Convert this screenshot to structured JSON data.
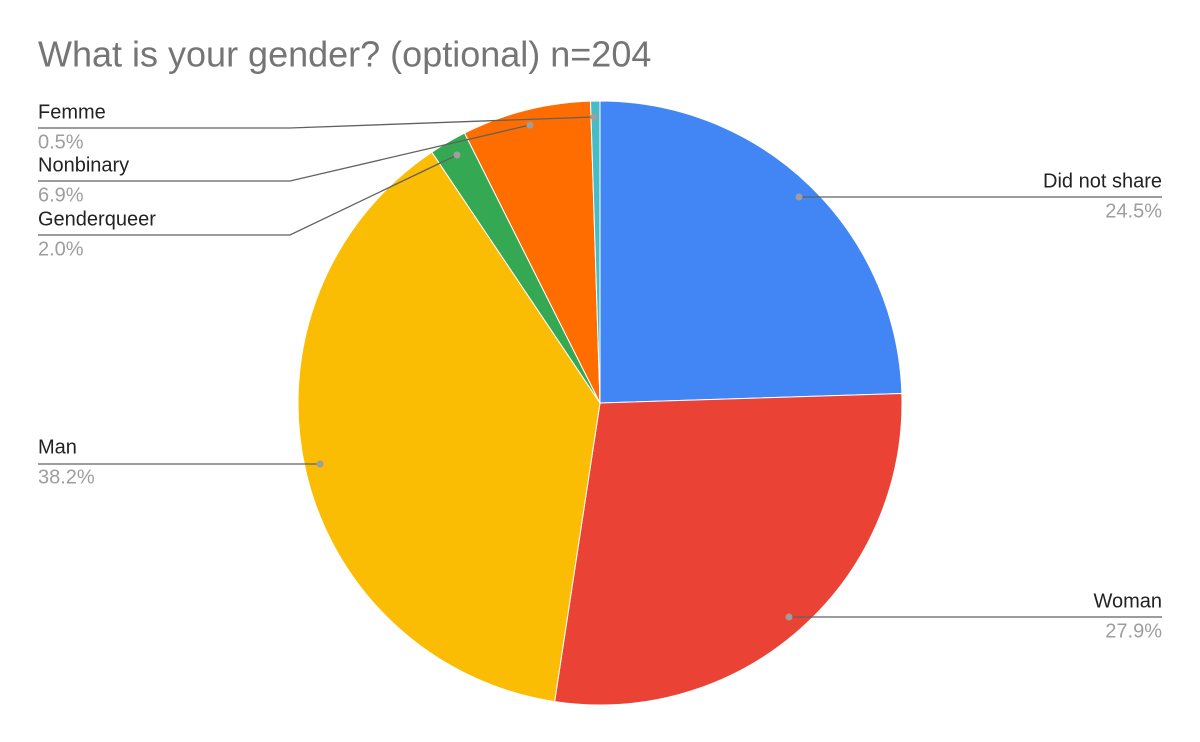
{
  "chart_data": {
    "type": "pie",
    "title": "What is your gender? (optional) n=204",
    "categories": [
      "Did not share",
      "Woman",
      "Man",
      "Genderqueer",
      "Nonbinary",
      "Femme"
    ],
    "values": [
      24.5,
      27.9,
      38.2,
      2.0,
      6.9,
      0.5
    ],
    "value_labels": [
      "24.5%",
      "27.9%",
      "38.2%",
      "2.0%",
      "6.9%",
      "0.5%"
    ],
    "colors": [
      "#4285f4",
      "#ea4335",
      "#fbbc04",
      "#34a853",
      "#ff6d01",
      "#46bdc6"
    ]
  }
}
